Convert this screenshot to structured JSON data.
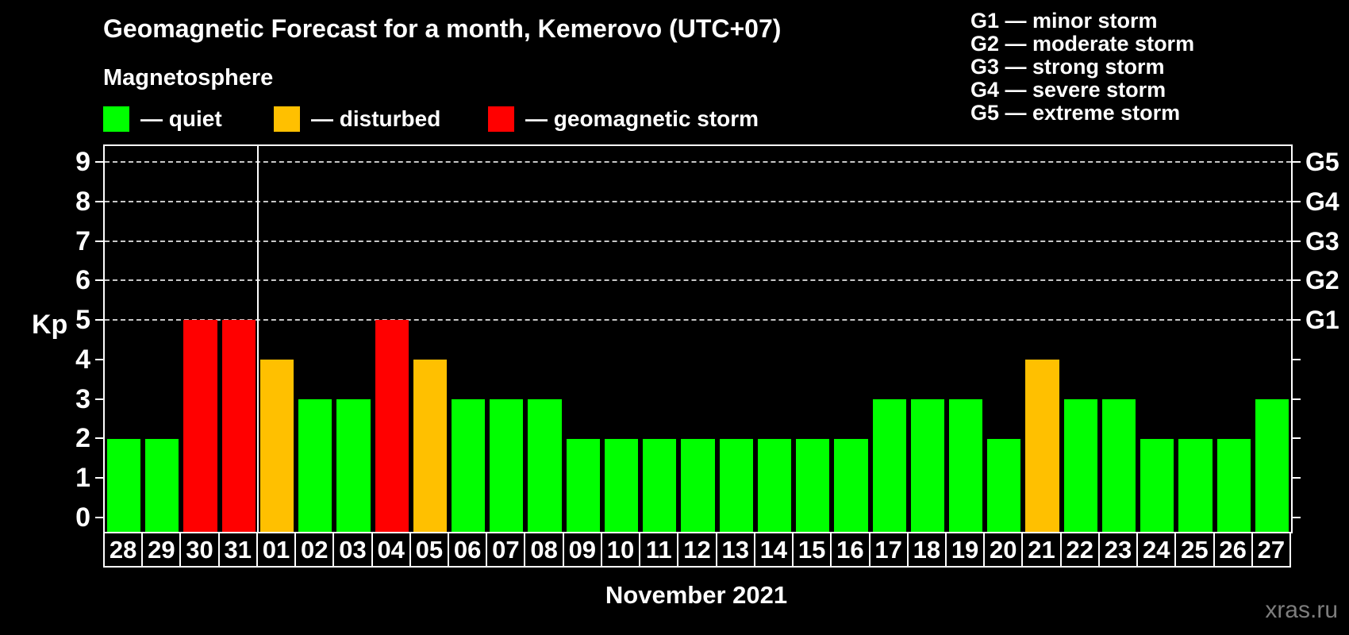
{
  "header": {
    "title": "Geomagnetic Forecast for a month, Kemerovo (UTC+07)",
    "subtitle": "Magnetosphere"
  },
  "legend": {
    "items": [
      {
        "label": "— quiet",
        "status": "quiet",
        "color": "#00ff00"
      },
      {
        "label": "— disturbed",
        "status": "disturbed",
        "color": "#ffc000"
      },
      {
        "label": "— geomagnetic storm",
        "status": "storm",
        "color": "#ff0000"
      }
    ]
  },
  "storm_scale": {
    "lines": [
      {
        "text": "G1 — minor storm"
      },
      {
        "text": "G2 — moderate storm"
      },
      {
        "text": "G3 — strong storm"
      },
      {
        "text": "G4 — severe storm"
      },
      {
        "text": "G5 — extreme storm"
      }
    ]
  },
  "chart_data": {
    "type": "bar",
    "title": "Geomagnetic Forecast for a month, Kemerovo (UTC+07)",
    "ylabel": "Kp",
    "xlabel": "November 2021",
    "ylim": [
      -0.4,
      9.4
    ],
    "yticks": [
      0,
      1,
      2,
      3,
      4,
      5,
      6,
      7,
      8,
      9
    ],
    "gridlines": [
      5,
      6,
      7,
      8,
      9
    ],
    "grid_on": true,
    "legend_position": "top-left",
    "right_axis": [
      {
        "kp": 5,
        "label": "G1"
      },
      {
        "kp": 6,
        "label": "G2"
      },
      {
        "kp": 7,
        "label": "G3"
      },
      {
        "kp": 8,
        "label": "G4"
      },
      {
        "kp": 9,
        "label": "G5"
      }
    ],
    "separator_after_index": 3,
    "status_colors": {
      "quiet": "#00ff00",
      "disturbed": "#ffc000",
      "storm": "#ff0000"
    },
    "categories": [
      "28",
      "29",
      "30",
      "31",
      "01",
      "02",
      "03",
      "04",
      "05",
      "06",
      "07",
      "08",
      "09",
      "10",
      "11",
      "12",
      "13",
      "14",
      "15",
      "16",
      "17",
      "18",
      "19",
      "20",
      "21",
      "22",
      "23",
      "24",
      "25",
      "26",
      "27"
    ],
    "values": [
      2,
      2,
      5,
      5,
      4,
      3,
      3,
      5,
      4,
      3,
      3,
      3,
      2,
      2,
      2,
      2,
      2,
      2,
      2,
      2,
      3,
      3,
      3,
      2,
      4,
      3,
      3,
      2,
      2,
      2,
      3
    ],
    "bars": [
      {
        "day": "28",
        "kp": 2,
        "status": "quiet"
      },
      {
        "day": "29",
        "kp": 2,
        "status": "quiet"
      },
      {
        "day": "30",
        "kp": 5,
        "status": "storm"
      },
      {
        "day": "31",
        "kp": 5,
        "status": "storm"
      },
      {
        "day": "01",
        "kp": 4,
        "status": "disturbed"
      },
      {
        "day": "02",
        "kp": 3,
        "status": "quiet"
      },
      {
        "day": "03",
        "kp": 3,
        "status": "quiet"
      },
      {
        "day": "04",
        "kp": 5,
        "status": "storm"
      },
      {
        "day": "05",
        "kp": 4,
        "status": "disturbed"
      },
      {
        "day": "06",
        "kp": 3,
        "status": "quiet"
      },
      {
        "day": "07",
        "kp": 3,
        "status": "quiet"
      },
      {
        "day": "08",
        "kp": 3,
        "status": "quiet"
      },
      {
        "day": "09",
        "kp": 2,
        "status": "quiet"
      },
      {
        "day": "10",
        "kp": 2,
        "status": "quiet"
      },
      {
        "day": "11",
        "kp": 2,
        "status": "quiet"
      },
      {
        "day": "12",
        "kp": 2,
        "status": "quiet"
      },
      {
        "day": "13",
        "kp": 2,
        "status": "quiet"
      },
      {
        "day": "14",
        "kp": 2,
        "status": "quiet"
      },
      {
        "day": "15",
        "kp": 2,
        "status": "quiet"
      },
      {
        "day": "16",
        "kp": 2,
        "status": "quiet"
      },
      {
        "day": "17",
        "kp": 3,
        "status": "quiet"
      },
      {
        "day": "18",
        "kp": 3,
        "status": "quiet"
      },
      {
        "day": "19",
        "kp": 3,
        "status": "quiet"
      },
      {
        "day": "20",
        "kp": 2,
        "status": "quiet"
      },
      {
        "day": "21",
        "kp": 4,
        "status": "disturbed"
      },
      {
        "day": "22",
        "kp": 3,
        "status": "quiet"
      },
      {
        "day": "23",
        "kp": 3,
        "status": "quiet"
      },
      {
        "day": "24",
        "kp": 2,
        "status": "quiet"
      },
      {
        "day": "25",
        "kp": 2,
        "status": "quiet"
      },
      {
        "day": "26",
        "kp": 2,
        "status": "quiet"
      },
      {
        "day": "27",
        "kp": 3,
        "status": "quiet"
      }
    ]
  },
  "xaxis_title": "November 2021",
  "watermark": "xras.ru"
}
